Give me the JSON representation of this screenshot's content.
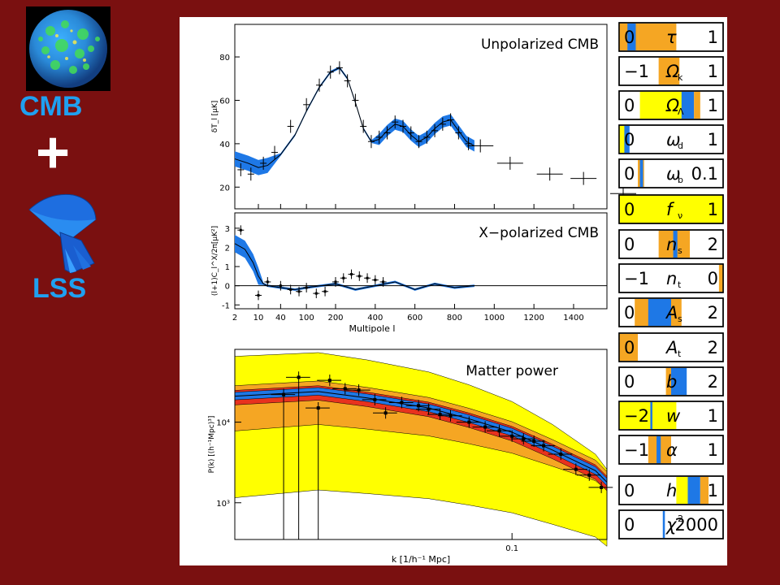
{
  "left_labels": {
    "cmb": "CMB",
    "plus": "+",
    "lss": "LSS"
  },
  "icons": {
    "globe": "cmb-sky-sphere-icon",
    "cone": "lss-survey-cone-icon"
  },
  "colors": {
    "background": "#7a1010",
    "label": "#1fa0f0",
    "blue_band": "#1e78e6",
    "yellow": "#ffff00",
    "orange": "#f5a623",
    "red": "#e8321e"
  },
  "chart_data": [
    {
      "type": "line",
      "title": "Unpolarized CMB",
      "ylabel": "δT_l [μK]",
      "ylim": [
        10,
        95
      ],
      "x_ticks": [
        "2",
        "10",
        "40",
        "100",
        "200",
        "400",
        "600",
        "800",
        "1000",
        "1200",
        "1400",
        "1600"
      ],
      "y_ticks": [
        "20",
        "40",
        "60",
        "80"
      ],
      "series": [
        {
          "x": [
            2,
            5,
            10,
            20,
            40,
            70,
            100,
            140,
            180,
            220,
            260,
            300,
            340,
            380,
            420,
            460,
            500,
            540,
            580,
            620,
            660,
            700,
            740,
            780,
            820,
            860,
            900
          ],
          "values": [
            33,
            31,
            29,
            30,
            35,
            44,
            55,
            66,
            73,
            75,
            70,
            59,
            47,
            41,
            42,
            46,
            49,
            48,
            44,
            41,
            43,
            47,
            50,
            51,
            46,
            41,
            39
          ]
        }
      ],
      "points": [
        {
          "x": 3,
          "y": 28
        },
        {
          "x": 6,
          "y": 26
        },
        {
          "x": 15,
          "y": 31
        },
        {
          "x": 30,
          "y": 36
        },
        {
          "x": 60,
          "y": 48
        },
        {
          "x": 100,
          "y": 58
        },
        {
          "x": 140,
          "y": 67
        },
        {
          "x": 180,
          "y": 73
        },
        {
          "x": 220,
          "y": 75
        },
        {
          "x": 260,
          "y": 69
        },
        {
          "x": 300,
          "y": 60
        },
        {
          "x": 340,
          "y": 48
        },
        {
          "x": 380,
          "y": 41
        },
        {
          "x": 420,
          "y": 43
        },
        {
          "x": 460,
          "y": 45
        },
        {
          "x": 500,
          "y": 50
        },
        {
          "x": 540,
          "y": 48
        },
        {
          "x": 580,
          "y": 45
        },
        {
          "x": 620,
          "y": 41
        },
        {
          "x": 660,
          "y": 43
        },
        {
          "x": 700,
          "y": 46
        },
        {
          "x": 740,
          "y": 49
        },
        {
          "x": 780,
          "y": 51
        },
        {
          "x": 820,
          "y": 45
        },
        {
          "x": 870,
          "y": 40
        },
        {
          "x": 930,
          "y": 39
        },
        {
          "x": 1080,
          "y": 31
        },
        {
          "x": 1280,
          "y": 26
        },
        {
          "x": 1450,
          "y": 24
        },
        {
          "x": 1650,
          "y": 17
        }
      ]
    },
    {
      "type": "line",
      "title": "X−polarized CMB",
      "ylabel": "(l+1)C_l^X/2π[μK²]",
      "xlabel": "Multipole l",
      "ylim": [
        -1.2,
        3.8
      ],
      "x_ticks": [
        "2",
        "10",
        "40",
        "100",
        "200",
        "400",
        "600",
        "800",
        "1000",
        "1200",
        "1400",
        "1600"
      ],
      "y_ticks": [
        "-1",
        "0",
        "1",
        "2",
        "3"
      ],
      "series": [
        {
          "x": [
            2,
            4,
            7,
            10,
            15,
            20,
            40,
            70,
            100,
            200,
            300,
            400,
            500,
            600,
            700,
            800,
            900
          ],
          "values": [
            2.2,
            1.9,
            1.2,
            0.5,
            0.1,
            0.0,
            -0.1,
            -0.2,
            -0.1,
            0.1,
            -0.2,
            0.0,
            0.2,
            -0.2,
            0.1,
            -0.1,
            0.0
          ]
        }
      ],
      "points": [
        {
          "x": 3,
          "y": 2.9
        },
        {
          "x": 10,
          "y": -0.5
        },
        {
          "x": 20,
          "y": 0.2
        },
        {
          "x": 40,
          "y": 0.0
        },
        {
          "x": 60,
          "y": -0.2
        },
        {
          "x": 80,
          "y": -0.3
        },
        {
          "x": 100,
          "y": -0.1
        },
        {
          "x": 130,
          "y": -0.4
        },
        {
          "x": 160,
          "y": -0.3
        },
        {
          "x": 200,
          "y": 0.2
        },
        {
          "x": 240,
          "y": 0.4
        },
        {
          "x": 280,
          "y": 0.6
        },
        {
          "x": 320,
          "y": 0.5
        },
        {
          "x": 360,
          "y": 0.4
        },
        {
          "x": 400,
          "y": 0.3
        },
        {
          "x": 440,
          "y": 0.2
        }
      ]
    },
    {
      "type": "line",
      "title": "Matter power",
      "ylabel": "P(k) [(h⁻¹Mpc)³]",
      "xlabel": "k [1/h⁻¹ Mpc]",
      "x_scale": "log",
      "y_scale": "log",
      "xlim": [
        0.01,
        0.22
      ],
      "ylim": [
        350,
        80000
      ],
      "x_ticks": [
        "0.1"
      ],
      "y_ticks": [
        "10³",
        "10⁴"
      ],
      "series": [
        {
          "x": [
            0.01,
            0.02,
            0.03,
            0.05,
            0.07,
            0.1,
            0.14,
            0.2,
            0.22
          ],
          "values": [
            21000,
            24000,
            20000,
            15000,
            11000,
            7500,
            4500,
            2500,
            1800
          ]
        }
      ],
      "points": [
        {
          "x": 0.015,
          "y": 22000
        },
        {
          "x": 0.017,
          "y": 36000
        },
        {
          "x": 0.02,
          "y": 15000
        },
        {
          "x": 0.022,
          "y": 33000
        },
        {
          "x": 0.025,
          "y": 26000
        },
        {
          "x": 0.028,
          "y": 25000
        },
        {
          "x": 0.032,
          "y": 19000
        },
        {
          "x": 0.035,
          "y": 13000
        },
        {
          "x": 0.04,
          "y": 17500
        },
        {
          "x": 0.046,
          "y": 16000
        },
        {
          "x": 0.05,
          "y": 14500
        },
        {
          "x": 0.055,
          "y": 12500
        },
        {
          "x": 0.06,
          "y": 12000
        },
        {
          "x": 0.07,
          "y": 10000
        },
        {
          "x": 0.08,
          "y": 8700
        },
        {
          "x": 0.09,
          "y": 7800
        },
        {
          "x": 0.1,
          "y": 6700
        },
        {
          "x": 0.11,
          "y": 6200
        },
        {
          "x": 0.12,
          "y": 5800
        },
        {
          "x": 0.13,
          "y": 5100
        },
        {
          "x": 0.15,
          "y": 4000
        },
        {
          "x": 0.17,
          "y": 2600
        },
        {
          "x": 0.19,
          "y": 2200
        },
        {
          "x": 0.21,
          "y": 1550
        }
      ]
    },
    {
      "type": "table",
      "parameters": [
        {
          "name": "τ",
          "sub": "",
          "min": "0",
          "max": "1",
          "bg": "#ffffff"
        },
        {
          "name": "Ω",
          "sub": "k",
          "min": "−1",
          "max": "1",
          "bg": "#ffffff"
        },
        {
          "name": "Ω",
          "sub": "Λ",
          "min": "0",
          "max": "1",
          "bg": "#ffffff"
        },
        {
          "name": "ω",
          "sub": "d",
          "min": "0",
          "max": "1",
          "bg": "#ffffff"
        },
        {
          "name": "ω",
          "sub": "b",
          "min": "0",
          "max": "0.1",
          "bg": "#ffffff"
        },
        {
          "name": "f",
          "sub": "ν",
          "min": "0",
          "max": "1",
          "bg": "#ffff00"
        },
        {
          "name": "n",
          "sub": "s",
          "min": "0",
          "max": "2",
          "bg": "#ffffff"
        },
        {
          "name": "n",
          "sub": "t",
          "min": "−1",
          "max": "0",
          "bg": "#ffffff"
        },
        {
          "name": "A",
          "sub": "s",
          "min": "0",
          "max": "2",
          "bg": "#ffffff"
        },
        {
          "name": "A",
          "sub": "t",
          "min": "0",
          "max": "2",
          "bg": "#ffffff"
        },
        {
          "name": "b",
          "sub": "",
          "min": "0",
          "max": "2",
          "bg": "#ffffff"
        },
        {
          "name": "w",
          "sub": "",
          "min": "−2",
          "max": "1",
          "bg": "#ffffff"
        },
        {
          "name": "α",
          "sub": "",
          "min": "−1",
          "max": "1",
          "bg": "#ffffff"
        },
        {
          "name": "h",
          "sub": "",
          "min": "0",
          "max": "1",
          "bg": "#ffffff"
        },
        {
          "name": "χ",
          "sub": "2",
          "min": "0",
          "max": "2000",
          "bg": "#ffffff"
        }
      ]
    }
  ]
}
